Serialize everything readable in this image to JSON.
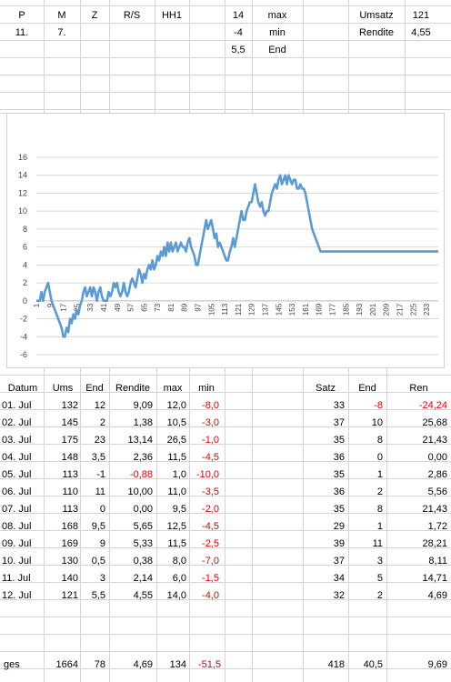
{
  "top": {
    "headers": [
      "P",
      "M",
      "Z",
      "R/S",
      "HH1"
    ],
    "row2": {
      "p": "11.",
      "m": "7."
    },
    "stats": [
      {
        "value": "14",
        "label": "max"
      },
      {
        "value": "-4",
        "label": "min"
      },
      {
        "value": "5,5",
        "label": "End"
      }
    ],
    "summary": [
      {
        "label": "Umsatz",
        "value": "121"
      },
      {
        "label": "Rendite",
        "value": "4,55"
      }
    ]
  },
  "table": {
    "headers": [
      "Datum",
      "Ums",
      "End",
      "Rendite",
      "max",
      "min"
    ],
    "right_headers": [
      "Satz",
      "End",
      "Ren"
    ],
    "rows": [
      {
        "datum": "01. Jul",
        "ums": "132",
        "end": "12",
        "rendite": "9,09",
        "max": "12,0",
        "min": "-8,0",
        "satz": "33",
        "end2": "-8",
        "ren": "-24,24",
        "rendite_neg": false,
        "end2_neg": true,
        "ren_neg": true
      },
      {
        "datum": "02. Jul",
        "ums": "145",
        "end": "2",
        "rendite": "1,38",
        "max": "10,5",
        "min": "-3,0",
        "satz": "37",
        "end2": "10",
        "ren": "25,68",
        "rendite_neg": false,
        "end2_neg": false,
        "ren_neg": false
      },
      {
        "datum": "03. Jul",
        "ums": "175",
        "end": "23",
        "rendite": "13,14",
        "max": "26,5",
        "min": "-1,0",
        "satz": "35",
        "end2": "8",
        "ren": "21,43",
        "rendite_neg": false,
        "end2_neg": false,
        "ren_neg": false
      },
      {
        "datum": "04. Jul",
        "ums": "148",
        "end": "3,5",
        "rendite": "2,36",
        "max": "11,5",
        "min": "-4,5",
        "satz": "36",
        "end2": "0",
        "ren": "0,00",
        "rendite_neg": false,
        "end2_neg": false,
        "ren_neg": false
      },
      {
        "datum": "05. Jul",
        "ums": "113",
        "end": "-1",
        "rendite": "-0,88",
        "max": "1,0",
        "min": "-10,0",
        "satz": "35",
        "end2": "1",
        "ren": "2,86",
        "rendite_neg": true,
        "end2_neg": false,
        "ren_neg": false
      },
      {
        "datum": "06. Jul",
        "ums": "110",
        "end": "11",
        "rendite": "10,00",
        "max": "11,0",
        "min": "-3,5",
        "satz": "36",
        "end2": "2",
        "ren": "5,56",
        "rendite_neg": false,
        "end2_neg": false,
        "ren_neg": false
      },
      {
        "datum": "07. Jul",
        "ums": "113",
        "end": "0",
        "rendite": "0,00",
        "max": "9,5",
        "min": "-2,0",
        "satz": "35",
        "end2": "8",
        "ren": "21,43",
        "rendite_neg": false,
        "end2_neg": false,
        "ren_neg": false
      },
      {
        "datum": "08. Jul",
        "ums": "168",
        "end": "9,5",
        "rendite": "5,65",
        "max": "12,5",
        "min": "-4,5",
        "satz": "29",
        "end2": "1",
        "ren": "1,72",
        "rendite_neg": false,
        "end2_neg": false,
        "ren_neg": false
      },
      {
        "datum": "09. Jul",
        "ums": "169",
        "end": "9",
        "rendite": "5,33",
        "max": "11,5",
        "min": "-2,5",
        "satz": "39",
        "end2": "11",
        "ren": "28,21",
        "rendite_neg": false,
        "end2_neg": false,
        "ren_neg": false
      },
      {
        "datum": "10. Jul",
        "ums": "130",
        "end": "0,5",
        "rendite": "0,38",
        "max": "8,0",
        "min": "-7,0",
        "satz": "37",
        "end2": "3",
        "ren": "8,11",
        "rendite_neg": false,
        "end2_neg": false,
        "ren_neg": false
      },
      {
        "datum": "11. Jul",
        "ums": "140",
        "end": "3",
        "rendite": "2,14",
        "max": "6,0",
        "min": "-1,5",
        "satz": "34",
        "end2": "5",
        "ren": "14,71",
        "rendite_neg": false,
        "end2_neg": false,
        "ren_neg": false
      },
      {
        "datum": "12. Jul",
        "ums": "121",
        "end": "5,5",
        "rendite": "4,55",
        "max": "14,0",
        "min": "-4,0",
        "satz": "32",
        "end2": "2",
        "ren": "4,69",
        "rendite_neg": false,
        "end2_neg": false,
        "ren_neg": false
      }
    ],
    "total": {
      "label": "ges",
      "ums": "1664",
      "end": "78",
      "rendite": "4,69",
      "max": "134",
      "min": "-51,5",
      "satz": "418",
      "end2": "40,5",
      "ren": "9,69"
    }
  },
  "colors": {
    "line": "#5b9bd5",
    "negative": "#e00000",
    "grid": "#d4d4d4"
  },
  "chart_data": {
    "type": "line",
    "ylim": [
      -6,
      16
    ],
    "yticks": [
      -6,
      -4,
      -2,
      0,
      2,
      4,
      6,
      8,
      10,
      12,
      14,
      16
    ],
    "xticks": [
      1,
      9,
      17,
      25,
      33,
      41,
      49,
      57,
      65,
      73,
      81,
      89,
      97,
      105,
      113,
      121,
      129,
      137,
      145,
      153,
      161,
      169,
      177,
      185,
      193,
      201,
      209,
      217,
      225,
      233
    ],
    "xlim": [
      1,
      240
    ],
    "grid": "horizontal",
    "series": [
      {
        "points": [
          [
            1,
            0
          ],
          [
            3,
            0
          ],
          [
            4,
            1
          ],
          [
            5,
            0
          ],
          [
            6,
            1
          ],
          [
            7,
            1.5
          ],
          [
            8,
            2
          ],
          [
            9,
            1
          ],
          [
            10,
            0
          ],
          [
            11,
            -0.5
          ],
          [
            12,
            -1
          ],
          [
            13,
            -1.5
          ],
          [
            14,
            -2
          ],
          [
            15,
            -2.5
          ],
          [
            16,
            -3
          ],
          [
            17,
            -4
          ],
          [
            18,
            -4
          ],
          [
            19,
            -3
          ],
          [
            20,
            -3.5
          ],
          [
            21,
            -2
          ],
          [
            22,
            -2.5
          ],
          [
            23,
            -1.5
          ],
          [
            24,
            -2
          ],
          [
            25,
            -1
          ],
          [
            26,
            -1.5
          ],
          [
            27,
            -0.5
          ],
          [
            28,
            0
          ],
          [
            29,
            1
          ],
          [
            30,
            1.5
          ],
          [
            31,
            0.5
          ],
          [
            32,
            1
          ],
          [
            33,
            1.5
          ],
          [
            34,
            0.5
          ],
          [
            35,
            1.5
          ],
          [
            36,
            1
          ],
          [
            37,
            0
          ],
          [
            38,
            1
          ],
          [
            39,
            1.5
          ],
          [
            40,
            0.5
          ],
          [
            41,
            0
          ],
          [
            42,
            0
          ],
          [
            43,
            0
          ],
          [
            44,
            1
          ],
          [
            45,
            0.5
          ],
          [
            46,
            1
          ],
          [
            47,
            2
          ],
          [
            48,
            1.5
          ],
          [
            49,
            2
          ],
          [
            50,
            1
          ],
          [
            51,
            0.5
          ],
          [
            52,
            1
          ],
          [
            53,
            2
          ],
          [
            54,
            1
          ],
          [
            55,
            0.5
          ],
          [
            56,
            1
          ],
          [
            57,
            2
          ],
          [
            58,
            2.5
          ],
          [
            59,
            2
          ],
          [
            60,
            1.5
          ],
          [
            61,
            2.5
          ],
          [
            62,
            3.5
          ],
          [
            63,
            3
          ],
          [
            64,
            2
          ],
          [
            65,
            3
          ],
          [
            66,
            2.5
          ],
          [
            67,
            3.5
          ],
          [
            68,
            4
          ],
          [
            69,
            3.5
          ],
          [
            70,
            4.5
          ],
          [
            71,
            3.5
          ],
          [
            72,
            4
          ],
          [
            73,
            5
          ],
          [
            74,
            4.5
          ],
          [
            75,
            5.5
          ],
          [
            76,
            5
          ],
          [
            77,
            6
          ],
          [
            78,
            5
          ],
          [
            79,
            6.5
          ],
          [
            80,
            5.5
          ],
          [
            81,
            6.5
          ],
          [
            82,
            5.5
          ],
          [
            83,
            6
          ],
          [
            84,
            6.5
          ],
          [
            85,
            5.5
          ],
          [
            86,
            6
          ],
          [
            87,
            6.5
          ],
          [
            88,
            6
          ],
          [
            89,
            6
          ],
          [
            90,
            5.5
          ],
          [
            91,
            6.5
          ],
          [
            92,
            7
          ],
          [
            93,
            6
          ],
          [
            94,
            5.5
          ],
          [
            95,
            5
          ],
          [
            96,
            4
          ],
          [
            97,
            4
          ],
          [
            98,
            5
          ],
          [
            99,
            6
          ],
          [
            100,
            7
          ],
          [
            101,
            8
          ],
          [
            102,
            9
          ],
          [
            103,
            8
          ],
          [
            104,
            8.5
          ],
          [
            105,
            9
          ],
          [
            106,
            8
          ],
          [
            107,
            7
          ],
          [
            108,
            7.5
          ],
          [
            109,
            6
          ],
          [
            110,
            6.5
          ],
          [
            111,
            6
          ],
          [
            112,
            5.5
          ],
          [
            113,
            5
          ],
          [
            114,
            4.5
          ],
          [
            115,
            4.5
          ],
          [
            116,
            5.5
          ],
          [
            117,
            6
          ],
          [
            118,
            7
          ],
          [
            119,
            6
          ],
          [
            120,
            7
          ],
          [
            121,
            8
          ],
          [
            122,
            9
          ],
          [
            123,
            10
          ],
          [
            124,
            9
          ],
          [
            125,
            9
          ],
          [
            126,
            10
          ],
          [
            127,
            10.5
          ],
          [
            128,
            11
          ],
          [
            129,
            11
          ],
          [
            130,
            12
          ],
          [
            131,
            13
          ],
          [
            132,
            12
          ],
          [
            133,
            11
          ],
          [
            134,
            10.5
          ],
          [
            135,
            11
          ],
          [
            136,
            10
          ],
          [
            137,
            9.5
          ],
          [
            138,
            10
          ],
          [
            139,
            10
          ],
          [
            140,
            11
          ],
          [
            141,
            12
          ],
          [
            142,
            12.5
          ],
          [
            143,
            13
          ],
          [
            144,
            12.5
          ],
          [
            145,
            13.5
          ],
          [
            146,
            14
          ],
          [
            147,
            13
          ],
          [
            148,
            13.5
          ],
          [
            149,
            14
          ],
          [
            150,
            13
          ],
          [
            151,
            14
          ],
          [
            152,
            13.5
          ],
          [
            153,
            13
          ],
          [
            154,
            13.5
          ],
          [
            155,
            13.5
          ],
          [
            156,
            12.5
          ],
          [
            157,
            12.5
          ],
          [
            158,
            13
          ],
          [
            159,
            12.5
          ],
          [
            160,
            12.5
          ],
          [
            161,
            12
          ],
          [
            162,
            11
          ],
          [
            163,
            10
          ],
          [
            164,
            9
          ],
          [
            165,
            8
          ],
          [
            166,
            7.5
          ],
          [
            167,
            7
          ],
          [
            168,
            6.5
          ],
          [
            169,
            6
          ],
          [
            170,
            5.5
          ],
          [
            171,
            5.5
          ],
          [
            240,
            5.5
          ]
        ]
      }
    ]
  }
}
